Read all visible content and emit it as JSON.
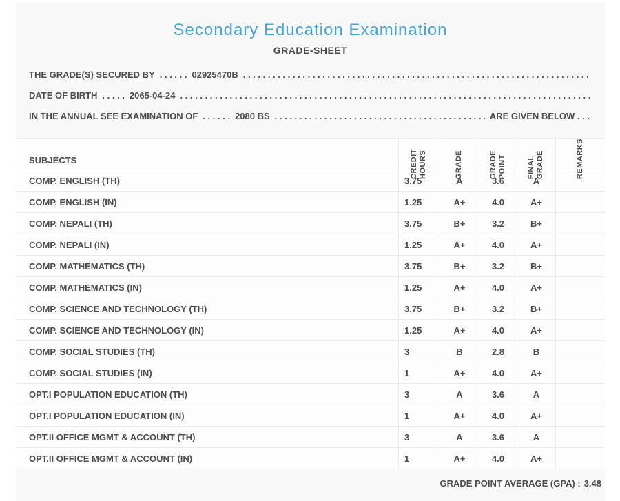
{
  "header": {
    "title": "Secondary Education Examination",
    "subtitle": "GRADE-SHEET"
  },
  "info_lines": [
    {
      "label": "THE GRADE(S) SECURED BY",
      "dots": ". . . . . .",
      "value": "02925470B",
      "suffix": ""
    },
    {
      "label": "DATE OF BIRTH",
      "dots": ". . . . .",
      "value": "2065-04-24",
      "suffix": ""
    },
    {
      "label": "IN THE ANNUAL SEE EXAMINATION OF",
      "dots": ". . . . . .",
      "value": "2080 BS",
      "suffix": "ARE GIVEN BELOW . . ."
    }
  ],
  "misc": {
    "dot_fill": ". . . . . . . . . . . . . . . . . . . . . . . . . . . . . . . . . . . . . . . . . . . . . . . . . . . . . . . . . . . . . . . . . . . . . . . . . . . . . . . . . . . . . . . . . . . . . . . . . . . . . . . . . . . . . . . . . . . . . . . . . . . ."
  },
  "table": {
    "columns": {
      "subjects": "SUBJECTS",
      "credit_hours": "CREDIT\nHOURS",
      "grade": "GRADE",
      "grade_point": "GRADE\nPOINT",
      "final_grade": "FINAL\nGRADE",
      "remarks": "REMARKS"
    },
    "rows": [
      {
        "subject": "COMP. ENGLISH (TH)",
        "credit_hours": "3.75",
        "grade": "A",
        "grade_point": "3.6",
        "final_grade": "A",
        "remarks": ""
      },
      {
        "subject": "COMP. ENGLISH (IN)",
        "credit_hours": "1.25",
        "grade": "A+",
        "grade_point": "4.0",
        "final_grade": "A+",
        "remarks": ""
      },
      {
        "subject": "COMP. NEPALI (TH)",
        "credit_hours": "3.75",
        "grade": "B+",
        "grade_point": "3.2",
        "final_grade": "B+",
        "remarks": ""
      },
      {
        "subject": "COMP. NEPALI (IN)",
        "credit_hours": "1.25",
        "grade": "A+",
        "grade_point": "4.0",
        "final_grade": "A+",
        "remarks": ""
      },
      {
        "subject": "COMP. MATHEMATICS (TH)",
        "credit_hours": "3.75",
        "grade": "B+",
        "grade_point": "3.2",
        "final_grade": "B+",
        "remarks": ""
      },
      {
        "subject": "COMP. MATHEMATICS (IN)",
        "credit_hours": "1.25",
        "grade": "A+",
        "grade_point": "4.0",
        "final_grade": "A+",
        "remarks": ""
      },
      {
        "subject": "COMP. SCIENCE AND TECHNOLOGY (TH)",
        "credit_hours": "3.75",
        "grade": "B+",
        "grade_point": "3.2",
        "final_grade": "B+",
        "remarks": ""
      },
      {
        "subject": "COMP. SCIENCE AND TECHNOLOGY (IN)",
        "credit_hours": "1.25",
        "grade": "A+",
        "grade_point": "4.0",
        "final_grade": "A+",
        "remarks": ""
      },
      {
        "subject": "COMP. SOCIAL STUDIES (TH)",
        "credit_hours": "3",
        "grade": "B",
        "grade_point": "2.8",
        "final_grade": "B",
        "remarks": ""
      },
      {
        "subject": "COMP. SOCIAL STUDIES (IN)",
        "credit_hours": "1",
        "grade": "A+",
        "grade_point": "4.0",
        "final_grade": "A+",
        "remarks": ""
      },
      {
        "subject": "OPT.I POPULATION EDUCATION (TH)",
        "credit_hours": "3",
        "grade": "A",
        "grade_point": "3.6",
        "final_grade": "A",
        "remarks": ""
      },
      {
        "subject": "OPT.I POPULATION EDUCATION (IN)",
        "credit_hours": "1",
        "grade": "A+",
        "grade_point": "4.0",
        "final_grade": "A+",
        "remarks": ""
      },
      {
        "subject": "OPT.II OFFICE MGMT & ACCOUNT (TH)",
        "credit_hours": "3",
        "grade": "A",
        "grade_point": "3.6",
        "final_grade": "A",
        "remarks": ""
      },
      {
        "subject": "OPT.II OFFICE MGMT & ACCOUNT (IN)",
        "credit_hours": "1",
        "grade": "A+",
        "grade_point": "4.0",
        "final_grade": "A+",
        "remarks": ""
      }
    ]
  },
  "footer": {
    "gpa_label": "GRADE POINT AVERAGE (GPA) :",
    "gpa_value": "3.48"
  },
  "colors": {
    "title_blue": "#3fa6e4",
    "text": "#4c4c4c",
    "panel_bg": "#f8f8f8",
    "row_bg": "#fdfdfd",
    "border": "#ebebeb"
  }
}
